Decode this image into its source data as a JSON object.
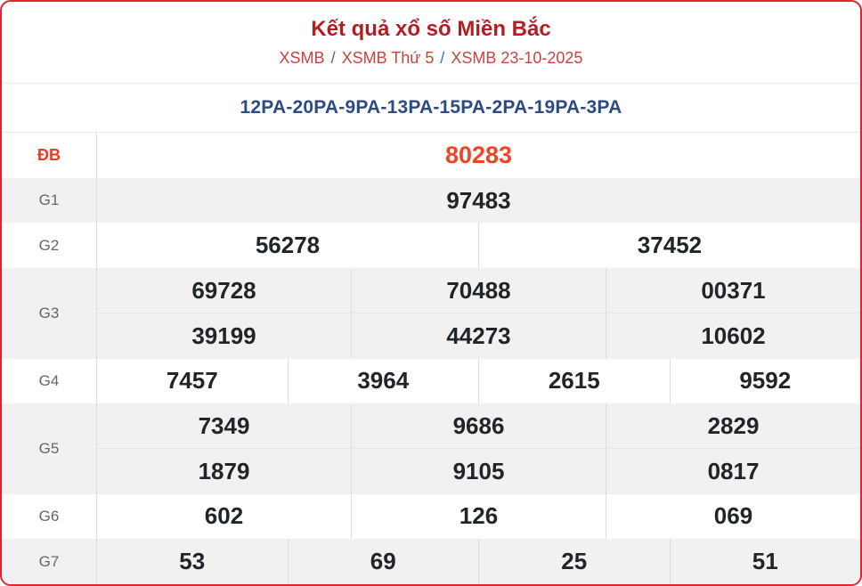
{
  "header": {
    "title": "Kết quả xổ số Miền Bắc",
    "breadcrumb": [
      {
        "label": "XSMB"
      },
      {
        "label": "XSMB Thứ 5"
      },
      {
        "label": "XSMB 23-10-2025"
      }
    ],
    "separator": "/"
  },
  "subtitle": "12PA-20PA-9PA-13PA-15PA-2PA-19PA-3PA",
  "results": {
    "rows": [
      {
        "key": "db",
        "label": "ĐB",
        "special": true,
        "lines": [
          [
            "80283"
          ]
        ]
      },
      {
        "key": "g1",
        "label": "G1",
        "special": false,
        "lines": [
          [
            "97483"
          ]
        ]
      },
      {
        "key": "g2",
        "label": "G2",
        "special": false,
        "lines": [
          [
            "56278",
            "37452"
          ]
        ]
      },
      {
        "key": "g3",
        "label": "G3",
        "special": false,
        "lines": [
          [
            "69728",
            "70488",
            "00371"
          ],
          [
            "39199",
            "44273",
            "10602"
          ]
        ]
      },
      {
        "key": "g4",
        "label": "G4",
        "special": false,
        "lines": [
          [
            "7457",
            "3964",
            "2615",
            "9592"
          ]
        ]
      },
      {
        "key": "g5",
        "label": "G5",
        "special": false,
        "lines": [
          [
            "7349",
            "9686",
            "2829"
          ],
          [
            "1879",
            "9105",
            "0817"
          ]
        ]
      },
      {
        "key": "g6",
        "label": "G6",
        "special": false,
        "lines": [
          [
            "602",
            "126",
            "069"
          ]
        ]
      },
      {
        "key": "g7",
        "label": "G7",
        "special": false,
        "lines": [
          [
            "53",
            "69",
            "25",
            "51"
          ]
        ]
      }
    ]
  },
  "colors": {
    "card_border": "#e0242f",
    "title": "#b31e24",
    "breadcrumb_link": "#ca4341",
    "breadcrumb_separator": "#3a6db8",
    "subtitle": "#2d4b80",
    "special_number": "#f04426",
    "number": "#212529",
    "stripe_background": "#f1f1f1"
  }
}
